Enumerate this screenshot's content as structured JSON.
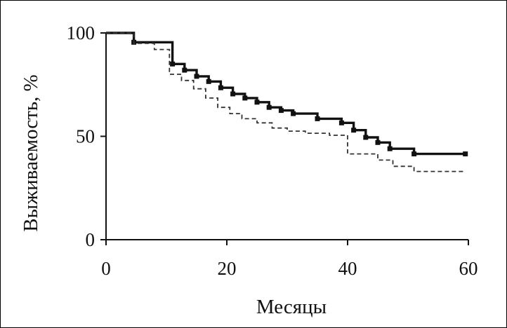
{
  "chart_data": {
    "type": "line",
    "title": "",
    "xlabel": "Месяцы",
    "ylabel": "Выживаемость, %",
    "xlim": [
      0,
      60
    ],
    "ylim": [
      0,
      100
    ],
    "xticks": [
      0,
      20,
      40,
      60
    ],
    "yticks": [
      0,
      50,
      100
    ],
    "grid": false,
    "legend": "none",
    "series": [
      {
        "style": "solid-with-markers",
        "color": "#111111",
        "x": [
          0,
          4.6,
          4.6,
          11,
          11,
          13,
          13,
          15,
          15,
          17,
          17,
          19,
          19,
          21,
          21,
          23,
          23,
          25,
          25,
          27,
          27,
          29,
          29,
          31,
          31,
          35,
          35,
          39,
          39,
          41,
          41,
          43,
          43,
          45,
          45,
          47,
          47,
          51,
          51,
          59.5
        ],
        "y": [
          100,
          100,
          95.5,
          95.5,
          85,
          85,
          82,
          82,
          79,
          79,
          76.5,
          76.5,
          73.5,
          73.5,
          70.5,
          70.5,
          68.5,
          68.5,
          66.5,
          66.5,
          64,
          64,
          62.5,
          62.5,
          61,
          61,
          58.5,
          58.5,
          56.5,
          56.5,
          53,
          53,
          49.5,
          49.5,
          47,
          47,
          44,
          44,
          41.5,
          41.5
        ],
        "markers": {
          "x": [
            4.6,
            11,
            13,
            15,
            17,
            19,
            21,
            23,
            25,
            27,
            29,
            31,
            35,
            39,
            41,
            43,
            45,
            47,
            51,
            59.5
          ],
          "y": [
            95.5,
            85,
            82,
            79,
            76.5,
            73.5,
            70.5,
            68.5,
            66.5,
            64,
            62.5,
            61,
            58.5,
            56.5,
            53,
            49.5,
            47,
            44,
            41.5,
            41.5
          ]
        }
      },
      {
        "style": "dashed",
        "color": "#333333",
        "x": [
          0,
          4.6,
          4.6,
          8,
          8,
          10.5,
          10.5,
          12.5,
          12.5,
          14.5,
          14.5,
          16.5,
          16.5,
          18.5,
          18.5,
          20.5,
          20.5,
          22.5,
          22.5,
          25,
          25,
          27.5,
          27.5,
          30,
          30,
          33,
          33,
          37,
          37,
          40,
          40,
          45,
          45,
          47.5,
          47.5,
          51,
          51,
          59.5
        ],
        "y": [
          100,
          100,
          95,
          95,
          92,
          92,
          80,
          80,
          77,
          77,
          73,
          73,
          68.5,
          68.5,
          64,
          64,
          61,
          61,
          58.5,
          58.5,
          56.5,
          56.5,
          54,
          54,
          52.5,
          52.5,
          51.5,
          51.5,
          50.5,
          50.5,
          41.5,
          41.5,
          38.5,
          38.5,
          35.5,
          35.5,
          33,
          33
        ]
      }
    ]
  }
}
